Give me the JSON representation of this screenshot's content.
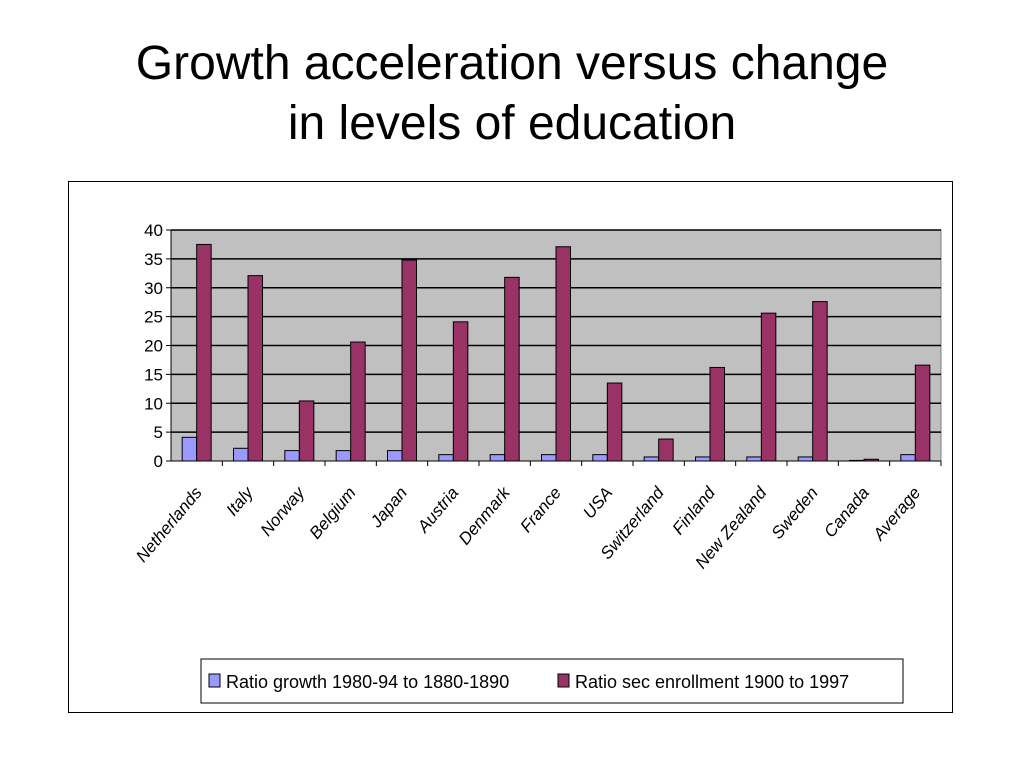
{
  "slide": {
    "title_line1": "Growth acceleration versus change",
    "title_line2": "in levels of education"
  },
  "chart_data": {
    "type": "bar",
    "categories": [
      "Netherlands",
      "Italy",
      "Norway",
      "Belgium",
      "Japan",
      "Austria",
      "Denmark",
      "France",
      "USA",
      "Switzerland",
      "Finland",
      "New Zealand",
      "Sweden",
      "Canada",
      "Average"
    ],
    "series": [
      {
        "name": "Ratio growth 1980-94 to 1880-1890",
        "color": "#9999ff",
        "values": [
          4.1,
          2.2,
          1.8,
          1.8,
          1.8,
          1.1,
          1.1,
          1.1,
          1.1,
          0.7,
          0.7,
          0.7,
          0.7,
          0.1,
          1.1
        ]
      },
      {
        "name": "Ratio sec enrollment 1900 to 1997",
        "color": "#993366",
        "values": [
          37.5,
          32.1,
          10.4,
          20.6,
          34.8,
          24.1,
          31.8,
          37.1,
          13.5,
          3.8,
          16.2,
          25.6,
          27.6,
          0.3,
          16.6
        ]
      }
    ],
    "yticks": [
      0,
      5,
      10,
      15,
      20,
      25,
      30,
      35,
      40
    ],
    "ylim": [
      0,
      40
    ],
    "grid": true,
    "legend": "bottom",
    "plot_background": "#c0c0c0"
  }
}
